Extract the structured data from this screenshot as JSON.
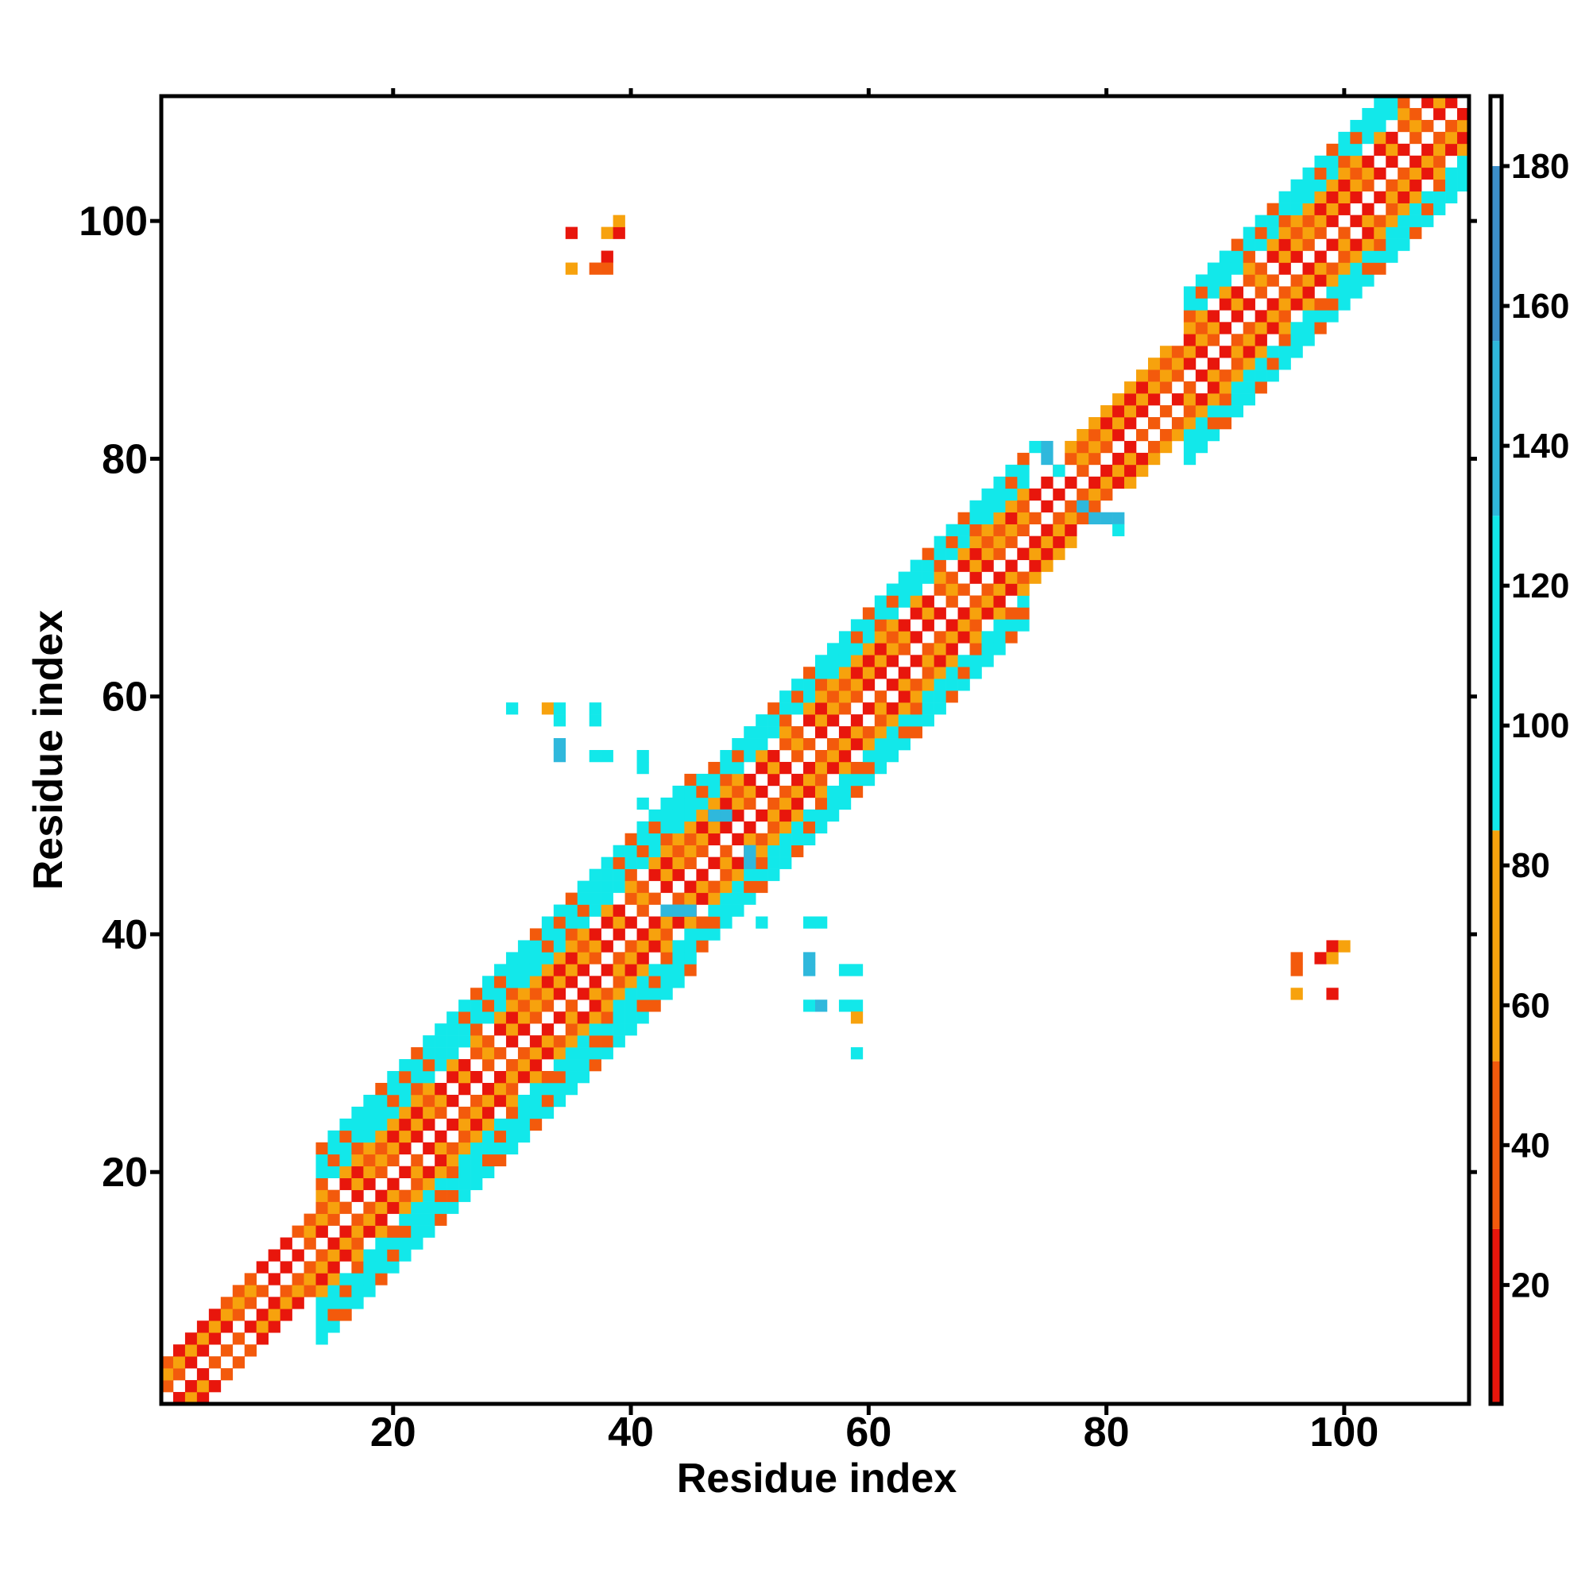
{
  "chart_data": {
    "type": "heatmap",
    "title": "",
    "xlabel": "Residue index",
    "ylabel": "Residue index",
    "xlim": [
      1,
      110
    ],
    "ylim": [
      1,
      110
    ],
    "x_ticks": [
      20,
      40,
      60,
      80,
      100
    ],
    "y_ticks": [
      20,
      40,
      60,
      80,
      100
    ],
    "colorbar": {
      "range": [
        3,
        190
      ],
      "ticks": [
        20,
        40,
        60,
        80,
        100,
        120,
        140,
        160,
        180
      ],
      "stops": [
        {
          "from": 3,
          "to": 28,
          "color": "#e8160c"
        },
        {
          "from": 28,
          "to": 52,
          "color": "#f35a0c"
        },
        {
          "from": 52,
          "to": 85,
          "color": "#f7a20d"
        },
        {
          "from": 85,
          "to": 130,
          "color": "#12e8ea"
        },
        {
          "from": 130,
          "to": 155,
          "color": "#2fb8dc"
        },
        {
          "from": 155,
          "to": 180,
          "color": "#3c8fca"
        },
        {
          "from": 180,
          "to": 190,
          "color": "#ffffff"
        }
      ]
    },
    "diagonal_band": {
      "segments": [
        {
          "from": 1,
          "to": 14,
          "halfwidth": 3,
          "palette": "warm"
        },
        {
          "from": 14,
          "to": 45,
          "halfwidth": 8,
          "palette": "mixed"
        },
        {
          "from": 45,
          "to": 73,
          "halfwidth": 7,
          "palette": "mixed"
        },
        {
          "from": 73,
          "to": 87,
          "halfwidth": 4,
          "palette": "warm"
        },
        {
          "from": 87,
          "to": 110,
          "halfwidth": 7,
          "palette": "mixed"
        }
      ]
    },
    "off_diagonal_cells": [
      {
        "x": 35,
        "y": 99,
        "v": 25
      },
      {
        "x": 38,
        "y": 99,
        "v": 70
      },
      {
        "x": 39,
        "y": 99,
        "v": 20
      },
      {
        "x": 39,
        "y": 100,
        "v": 70
      },
      {
        "x": 38,
        "y": 97,
        "v": 25
      },
      {
        "x": 35,
        "y": 96,
        "v": 70
      },
      {
        "x": 37,
        "y": 96,
        "v": 45
      },
      {
        "x": 38,
        "y": 96,
        "v": 45
      },
      {
        "x": 96,
        "y": 35,
        "v": 70
      },
      {
        "x": 99,
        "y": 35,
        "v": 20
      },
      {
        "x": 96,
        "y": 37,
        "v": 45
      },
      {
        "x": 96,
        "y": 38,
        "v": 45
      },
      {
        "x": 98,
        "y": 38,
        "v": 20
      },
      {
        "x": 99,
        "y": 39,
        "v": 20
      },
      {
        "x": 100,
        "y": 39,
        "v": 70
      },
      {
        "x": 99,
        "y": 38,
        "v": 70
      },
      {
        "x": 30,
        "y": 59,
        "v": 110
      },
      {
        "x": 33,
        "y": 59,
        "v": 70
      },
      {
        "x": 34,
        "y": 59,
        "v": 110
      },
      {
        "x": 34,
        "y": 58,
        "v": 110
      },
      {
        "x": 37,
        "y": 59,
        "v": 110
      },
      {
        "x": 37,
        "y": 58,
        "v": 110
      },
      {
        "x": 34,
        "y": 56,
        "v": 140
      },
      {
        "x": 34,
        "y": 55,
        "v": 140
      },
      {
        "x": 37,
        "y": 55,
        "v": 110
      },
      {
        "x": 38,
        "y": 55,
        "v": 110
      },
      {
        "x": 41,
        "y": 55,
        "v": 110
      },
      {
        "x": 41,
        "y": 54,
        "v": 110
      },
      {
        "x": 41,
        "y": 51,
        "v": 110
      },
      {
        "x": 51,
        "y": 41,
        "v": 110
      },
      {
        "x": 55,
        "y": 41,
        "v": 110
      },
      {
        "x": 56,
        "y": 41,
        "v": 110
      },
      {
        "x": 55,
        "y": 38,
        "v": 140
      },
      {
        "x": 55,
        "y": 37,
        "v": 140
      },
      {
        "x": 58,
        "y": 37,
        "v": 110
      },
      {
        "x": 59,
        "y": 37,
        "v": 110
      },
      {
        "x": 55,
        "y": 34,
        "v": 110
      },
      {
        "x": 56,
        "y": 34,
        "v": 140
      },
      {
        "x": 58,
        "y": 34,
        "v": 110
      },
      {
        "x": 59,
        "y": 34,
        "v": 110
      },
      {
        "x": 59,
        "y": 33,
        "v": 70
      },
      {
        "x": 59,
        "y": 30,
        "v": 110
      },
      {
        "x": 74,
        "y": 81,
        "v": 110
      },
      {
        "x": 75,
        "y": 81,
        "v": 140
      },
      {
        "x": 75,
        "y": 80,
        "v": 140
      },
      {
        "x": 76,
        "y": 79,
        "v": 110
      },
      {
        "x": 79,
        "y": 75,
        "v": 140
      },
      {
        "x": 80,
        "y": 75,
        "v": 140
      },
      {
        "x": 81,
        "y": 75,
        "v": 140
      },
      {
        "x": 81,
        "y": 74,
        "v": 110
      },
      {
        "x": 78,
        "y": 76,
        "v": 140
      },
      {
        "x": 47,
        "y": 50,
        "v": 140
      },
      {
        "x": 48,
        "y": 50,
        "v": 140
      },
      {
        "x": 50,
        "y": 47,
        "v": 140
      },
      {
        "x": 50,
        "y": 46,
        "v": 140
      },
      {
        "x": 43,
        "y": 42,
        "v": 140
      },
      {
        "x": 44,
        "y": 42,
        "v": 140
      },
      {
        "x": 45,
        "y": 42,
        "v": 140
      }
    ]
  }
}
